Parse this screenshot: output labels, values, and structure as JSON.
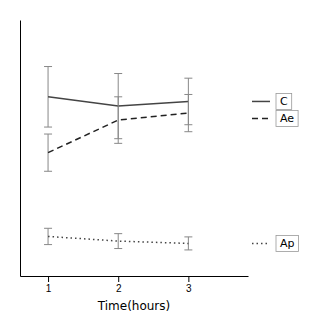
{
  "chart_data": {
    "type": "line",
    "xlabel": "Time(hours)",
    "x": [
      1,
      2,
      3
    ],
    "xlim": [
      0.6,
      3.85
    ],
    "xticks": [
      1,
      2,
      3
    ],
    "ylim": [
      -0.05,
      1.05
    ],
    "yticks": [],
    "tick_labels": "x",
    "grid": false,
    "legend": "right",
    "series": [
      {
        "name": "C",
        "color": "#444444",
        "line_style": "solid",
        "values": [
          0.72,
          0.68,
          0.7
        ],
        "errors": [
          0.13,
          0.14,
          0.1
        ]
      },
      {
        "name": "Ae",
        "color": "#222222",
        "line_style": "dashed",
        "values": [
          0.48,
          0.62,
          0.65
        ],
        "errors": [
          0.08,
          0.1,
          0.08
        ]
      },
      {
        "name": "Ap",
        "color": "#444444",
        "line_style": "dotted",
        "values": [
          0.12,
          0.1,
          0.09
        ],
        "errors": [
          0.035,
          0.032,
          0.028
        ]
      }
    ]
  }
}
